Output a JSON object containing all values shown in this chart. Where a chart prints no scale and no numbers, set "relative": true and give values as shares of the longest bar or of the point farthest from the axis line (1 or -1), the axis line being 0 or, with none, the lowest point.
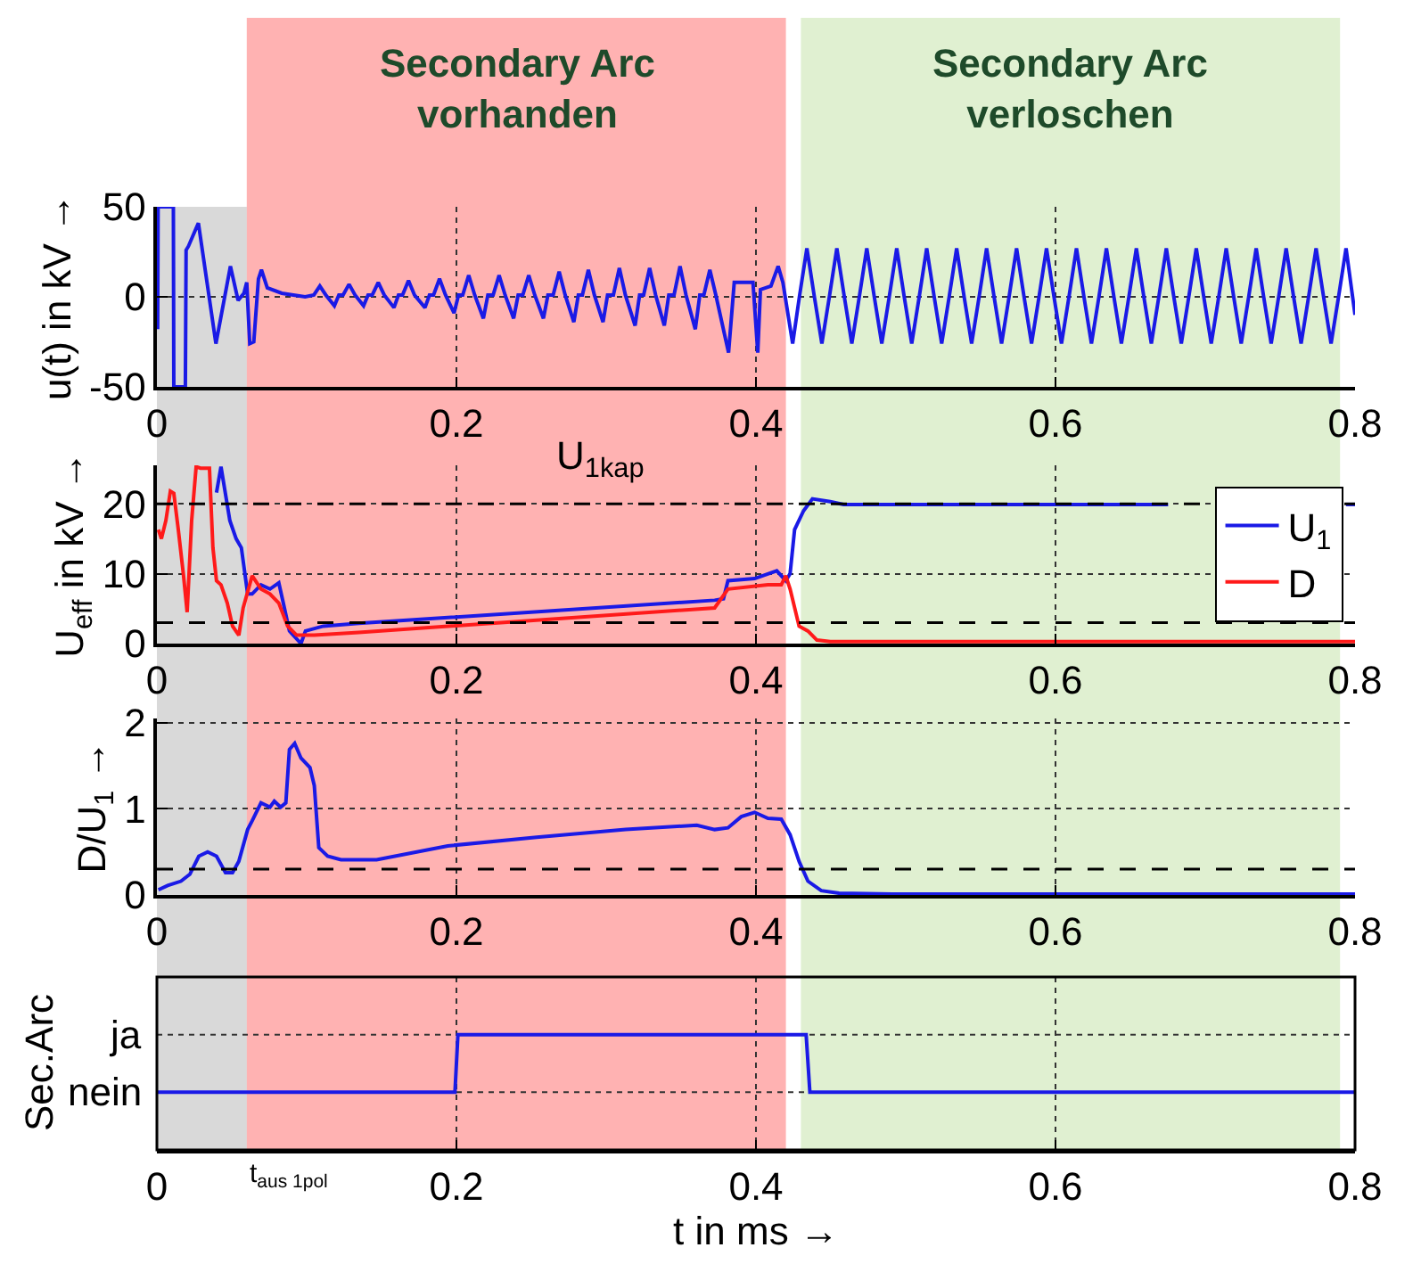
{
  "chart_data": [
    {
      "type": "line",
      "ylabel": "u(t) in kV →",
      "xlim": [
        0,
        0.8
      ],
      "xticks": [
        0,
        0.2,
        0.4,
        0.6,
        0.8
      ],
      "ylim": [
        -50,
        50
      ],
      "yticks": [
        -50,
        0,
        50
      ],
      "grid": true,
      "bands": [
        {
          "axis": "x",
          "from": 0,
          "to": 0.06,
          "color": "#808080"
        },
        {
          "axis": "x",
          "from": 0.06,
          "to": 0.42,
          "label": "Secondary Arc\nvorhanden",
          "color": "#ff0000"
        },
        {
          "axis": "x",
          "from": 0.43,
          "to": 0.79,
          "label": "Secondary Arc\nverloschen",
          "color": "#99cc66"
        }
      ],
      "series": [
        {
          "color": "#1a1ae6",
          "x": [
            0.0005,
            0.0008,
            0.011,
            0.0113,
            0.019,
            0.0195,
            0.021,
            0.0277,
            0.0394,
            0.0491,
            0.0542,
            0.0581,
            0.06,
            0.062,
            0.0647,
            0.0678,
            0.0698,
            0.0737,
            0.0834,
            0.0912,
            0.099,
            0.1048,
            0.1088,
            0.1128,
            0.1185,
            0.1215,
            0.1243,
            0.1283,
            0.1323,
            0.138,
            0.141,
            0.1438,
            0.1478,
            0.1518,
            0.1583,
            0.1613,
            0.164,
            0.168,
            0.172,
            0.179,
            0.182,
            0.1847,
            0.1887,
            0.1927,
            0.1984,
            0.2014,
            0.2042,
            0.2082,
            0.2122,
            0.218,
            0.221,
            0.2245,
            0.2285,
            0.2325,
            0.2382,
            0.2412,
            0.2443,
            0.2483,
            0.2523,
            0.2581,
            0.2611,
            0.2646,
            0.2686,
            0.2726,
            0.2784,
            0.2814,
            0.2841,
            0.2881,
            0.2921,
            0.2979,
            0.3009,
            0.3048,
            0.3088,
            0.3128,
            0.3193,
            0.3223,
            0.325,
            0.329,
            0.333,
            0.3388,
            0.3418,
            0.3453,
            0.3493,
            0.3533,
            0.3595,
            0.3625,
            0.3652,
            0.3692,
            0.3732,
            0.3817,
            0.3855,
            0.3914,
            0.398,
            0.4012,
            0.403,
            0.41,
            0.4148,
            0.418,
            0.4245,
            0.429,
            0.434,
            0.439,
            0.444,
            0.449,
            0.454,
            0.459,
            0.464,
            0.469,
            0.474,
            0.479,
            0.484,
            0.489,
            0.494,
            0.499,
            0.504,
            0.509,
            0.514,
            0.519,
            0.524,
            0.529,
            0.534,
            0.539,
            0.544,
            0.549,
            0.554,
            0.559,
            0.564,
            0.569,
            0.574,
            0.579,
            0.584,
            0.589,
            0.594,
            0.599,
            0.604,
            0.609,
            0.614,
            0.619,
            0.624,
            0.629,
            0.634,
            0.639,
            0.644,
            0.649,
            0.654,
            0.659,
            0.664,
            0.669,
            0.674,
            0.679,
            0.684,
            0.689,
            0.694,
            0.699,
            0.704,
            0.709,
            0.714,
            0.719,
            0.724,
            0.729,
            0.734,
            0.739,
            0.744,
            0.749,
            0.754,
            0.759,
            0.764,
            0.769,
            0.774,
            0.779,
            0.784,
            0.789,
            0.794,
            0.8
          ],
          "values": [
            -18,
            50,
            50,
            -50,
            -50,
            26,
            28,
            41,
            -26,
            17,
            -2,
            2,
            8,
            -26,
            -25,
            10,
            15,
            5,
            2,
            1,
            0,
            1,
            6,
            1,
            -5,
            1,
            1,
            7,
            1,
            -5,
            1,
            1,
            8,
            1,
            -6,
            1,
            1,
            9,
            1,
            -6,
            1,
            1,
            10,
            1,
            -9,
            1,
            1,
            12,
            1,
            -12,
            1,
            1,
            12,
            1,
            -12,
            1,
            1,
            12,
            1,
            -12,
            1,
            1,
            14,
            1,
            -14,
            1,
            1,
            15,
            1,
            -14,
            1,
            1,
            16,
            1,
            -16,
            1,
            1,
            16,
            1,
            -16,
            1,
            1,
            17,
            1,
            -18,
            1,
            1,
            15,
            1,
            -31,
            8,
            8,
            8,
            -31,
            4,
            6,
            17,
            8,
            -26,
            0,
            27,
            0,
            -26,
            0,
            27,
            0,
            -26,
            0,
            27,
            0,
            -26,
            0,
            27,
            0,
            -26,
            0,
            27,
            0,
            -26,
            0,
            27,
            0,
            -26,
            0,
            27,
            0,
            -26,
            0,
            27,
            0,
            -26,
            0,
            27,
            0,
            -26,
            0,
            27,
            0,
            -26,
            0,
            27,
            0,
            -26,
            0,
            27,
            0,
            -26,
            0,
            27,
            0,
            -26,
            0,
            27,
            0,
            -26,
            0,
            27,
            0,
            -26,
            0,
            27,
            0,
            -26,
            0,
            27,
            0,
            -26,
            0,
            27,
            0,
            -26,
            0,
            27,
            -10
          ]
        }
      ]
    },
    {
      "type": "line",
      "ylabel": "U$_{eff}$ in kV →",
      "xlim": [
        0,
        0.8
      ],
      "xticks": [
        0,
        0.2,
        0.4,
        0.6,
        0.8
      ],
      "ylim": [
        0,
        25.5
      ],
      "yticks": [
        0,
        10,
        20
      ],
      "grid": true,
      "legend": "right",
      "bands": [
        {
          "axis": "x",
          "from": 0,
          "to": 0.06,
          "color": "#808080"
        },
        {
          "axis": "x",
          "from": 0.06,
          "to": 0.42,
          "color": "#ff0000"
        },
        {
          "axis": "x",
          "from": 0.43,
          "to": 0.79,
          "color": "#99cc66"
        }
      ],
      "ref_lines": [
        {
          "axis": "y",
          "value": 20,
          "label": "U$_{1kap}$",
          "color": "#000000",
          "line_style": "dashed"
        },
        {
          "axis": "y",
          "value": 3,
          "color": "#000000",
          "line_style": "dashed"
        }
      ],
      "series": [
        {
          "name": "U$_{1}$",
          "color": "#1a1ae6",
          "x": [
            0.0398,
            0.0428,
            0.0487,
            0.0529,
            0.0564,
            0.0606,
            0.0636,
            0.0695,
            0.0755,
            0.0814,
            0.0844,
            0.0885,
            0.0962,
            0.0992,
            0.1111,
            0.1348,
            0.3724,
            0.3783,
            0.3813,
            0.3991,
            0.4139,
            0.4199,
            0.4228,
            0.4258,
            0.4318,
            0.4377,
            0.4496,
            0.4585,
            0.4911,
            0.6752,
            0.73,
            0.794,
            0.8
          ],
          "values": [
            21.6,
            25.3,
            17.6,
            15,
            13.7,
            7.1,
            7.1,
            8.4,
            7.8,
            8.7,
            5.8,
            1.8,
            0,
            1.8,
            2.5,
            2.9,
            6.2,
            6.4,
            9,
            9.3,
            10.4,
            9,
            10,
            16.3,
            19,
            20.7,
            20.3,
            19.9,
            19.9,
            19.9,
            null,
            19.9,
            19.9
          ]
        },
        {
          "name": "D",
          "color": "#ff1a1a",
          "x": [
            0.001,
            0.003,
            0.006,
            0.009,
            0.0113,
            0.0143,
            0.0178,
            0.0202,
            0.0232,
            0.0262,
            0.0291,
            0.0351,
            0.0374,
            0.0398,
            0.0428,
            0.047,
            0.0505,
            0.0547,
            0.0576,
            0.0636,
            0.0695,
            0.0755,
            0.0814,
            0.0873,
            0.0933,
            0.1051,
            0.1348,
            0.3724,
            0.3813,
            0.408,
            0.4169,
            0.4199,
            0.4228,
            0.4288,
            0.4347,
            0.4407,
            0.4496,
            0.4911,
            0.8
          ],
          "values": [
            16.3,
            15,
            17.6,
            21.8,
            21.5,
            16.3,
            9.7,
            4.5,
            17.6,
            25.3,
            25.1,
            25.1,
            13.7,
            9,
            8.4,
            5.8,
            2.5,
            1.2,
            5.1,
            9.7,
            7.8,
            7.1,
            5.8,
            2.5,
            1.2,
            1.2,
            1.6,
            5.1,
            7.8,
            8.4,
            8.4,
            9.7,
            7.8,
            2.5,
            1.8,
            0.5,
            0.3,
            0.3,
            0.3
          ]
        }
      ]
    },
    {
      "type": "line",
      "ylabel": "D/U$_{1}$ →",
      "xlim": [
        0,
        0.8
      ],
      "xticks": [
        0,
        0.2,
        0.4,
        0.6,
        0.8
      ],
      "ylim": [
        0,
        2.05
      ],
      "yticks": [
        0,
        1,
        2
      ],
      "grid": true,
      "bands": [
        {
          "axis": "x",
          "from": 0,
          "to": 0.06,
          "color": "#808080"
        },
        {
          "axis": "x",
          "from": 0.06,
          "to": 0.42,
          "color": "#ff0000"
        },
        {
          "axis": "x",
          "from": 0.43,
          "to": 0.79,
          "color": "#99cc66"
        }
      ],
      "ref_lines": [
        {
          "axis": "y",
          "value": 0.3,
          "color": "#000000",
          "line_style": "dashed"
        }
      ],
      "series": [
        {
          "color": "#1a1ae6",
          "x": [
            0.001,
            0.0072,
            0.0161,
            0.022,
            0.028,
            0.0339,
            0.0398,
            0.0458,
            0.0505,
            0.0547,
            0.0606,
            0.0636,
            0.0695,
            0.0755,
            0.0784,
            0.0826,
            0.0861,
            0.0885,
            0.092,
            0.0962,
            0.1022,
            0.1051,
            0.1081,
            0.114,
            0.1229,
            0.1467,
            0.1942,
            0.2536,
            0.313,
            0.3605,
            0.3724,
            0.3813,
            0.3902,
            0.3991,
            0.408,
            0.4169,
            0.4228,
            0.4288,
            0.4347,
            0.4436,
            0.4555,
            0.4911,
            0.8
          ],
          "values": [
            0.06,
            0.11,
            0.16,
            0.24,
            0.45,
            0.5,
            0.45,
            0.26,
            0.26,
            0.39,
            0.76,
            0.86,
            1.07,
            1.02,
            1.09,
            1.02,
            1.07,
            1.69,
            1.76,
            1.59,
            1.48,
            1.27,
            0.55,
            0.45,
            0.41,
            0.41,
            0.57,
            0.67,
            0.76,
            0.81,
            0.76,
            0.78,
            0.91,
            0.96,
            0.89,
            0.88,
            0.7,
            0.39,
            0.16,
            0.05,
            0.02,
            0.01,
            0.01
          ]
        }
      ]
    },
    {
      "type": "line",
      "ylabel": "Sec.Arc",
      "xlabel": "t in ms →",
      "xlim": [
        0,
        0.8
      ],
      "xticks": [
        0,
        0.2,
        0.4,
        0.6,
        0.8
      ],
      "relative": true,
      "grid": "x",
      "bands": [
        {
          "axis": "x",
          "from": 0,
          "to": 0.06,
          "color": "#808080"
        },
        {
          "axis": "x",
          "from": 0.06,
          "to": 0.42,
          "color": "#ff0000"
        },
        {
          "axis": "x",
          "from": 0.43,
          "to": 0.79,
          "color": "#99cc66"
        }
      ],
      "annotations": [
        "ja",
        "nein",
        "t$_{aus 1pol}$"
      ],
      "series": [
        {
          "color": "#1a1ae6",
          "x": [
            0,
            0.199,
            0.201,
            0.4335,
            0.436,
            0.8
          ],
          "values": [
            0,
            0,
            1,
            1,
            0,
            0
          ]
        }
      ]
    }
  ]
}
